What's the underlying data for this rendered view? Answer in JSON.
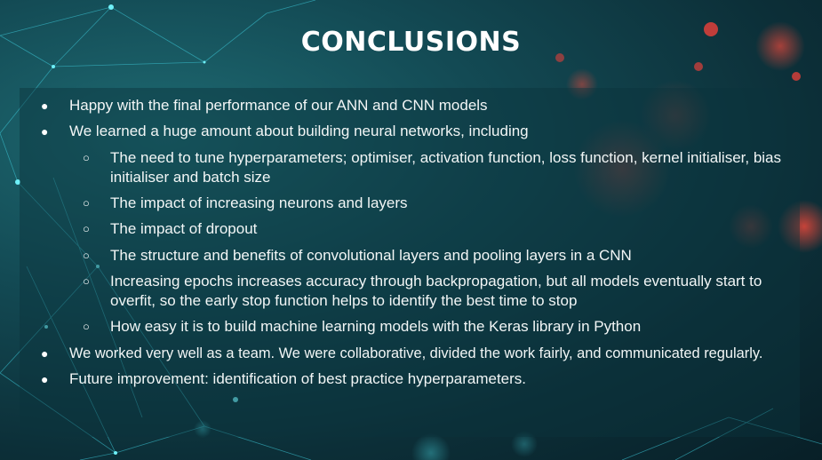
{
  "slide": {
    "title": "CONCLUSIONS"
  },
  "bullets": {
    "b1": "Happy with the final performance of our ANN and CNN models",
    "b2": "We learned a huge amount about building neural networks, including",
    "b2_sub": [
      "The need to tune hyperparameters; optimiser, activation function, loss function, kernel initialiser, bias initialiser and batch size",
      "The impact of increasing neurons and layers",
      "The impact of dropout",
      "The structure and benefits of convolutional layers and pooling layers in a CNN",
      "Increasing epochs increases accuracy through backpropagation, but all models eventually start to overfit, so the early stop function helps to identify the best time to stop",
      "How easy it is to build machine learning models with the Keras library in Python"
    ],
    "b3": "We worked very well as a team. We were collaborative, divided the work fairly, and communicated regularly.",
    "b4": "Future improvement: identification of best practice hyperparameters."
  },
  "glyphs": {
    "filled": "●",
    "hollow": "○"
  },
  "colors": {
    "background": "#0c2f38",
    "network_lines": "#3fd0e0",
    "bokeh_red": "#e0403a"
  }
}
